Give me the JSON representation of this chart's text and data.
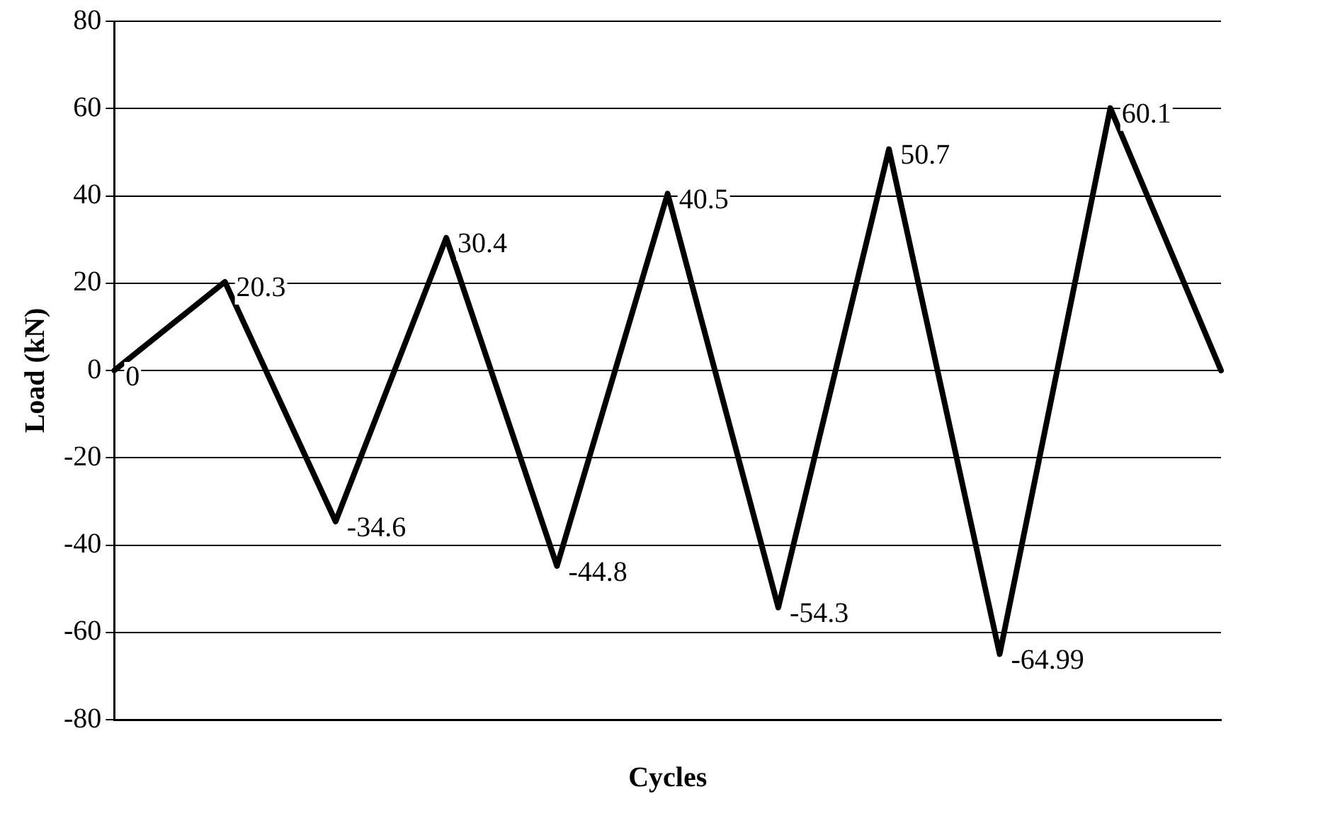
{
  "chart_data": {
    "type": "line",
    "xlabel": "Cycles",
    "ylabel": "Load (kN)",
    "categories": [
      null,
      null,
      null,
      null,
      null,
      null,
      null,
      null,
      null,
      null,
      null
    ],
    "series": [
      {
        "color": "#000000",
        "values": [
          0,
          20.3,
          -34.6,
          30.4,
          -44.8,
          40.5,
          -54.3,
          50.7,
          -64.99,
          60.1,
          0
        ],
        "value_labels": [
          "0",
          "20.3",
          "-34.6",
          "30.4",
          "-44.8",
          "40.5",
          "-54.3",
          "50.7",
          "-64.99",
          "60.1",
          null
        ]
      }
    ],
    "ylim": [
      -80,
      80
    ],
    "yticks": [
      -80,
      -60,
      -40,
      -20,
      0,
      20,
      40,
      60,
      80
    ],
    "grid": "y",
    "legend": false,
    "marker": "none",
    "line_style": "solid",
    "tick_labels": "y"
  }
}
